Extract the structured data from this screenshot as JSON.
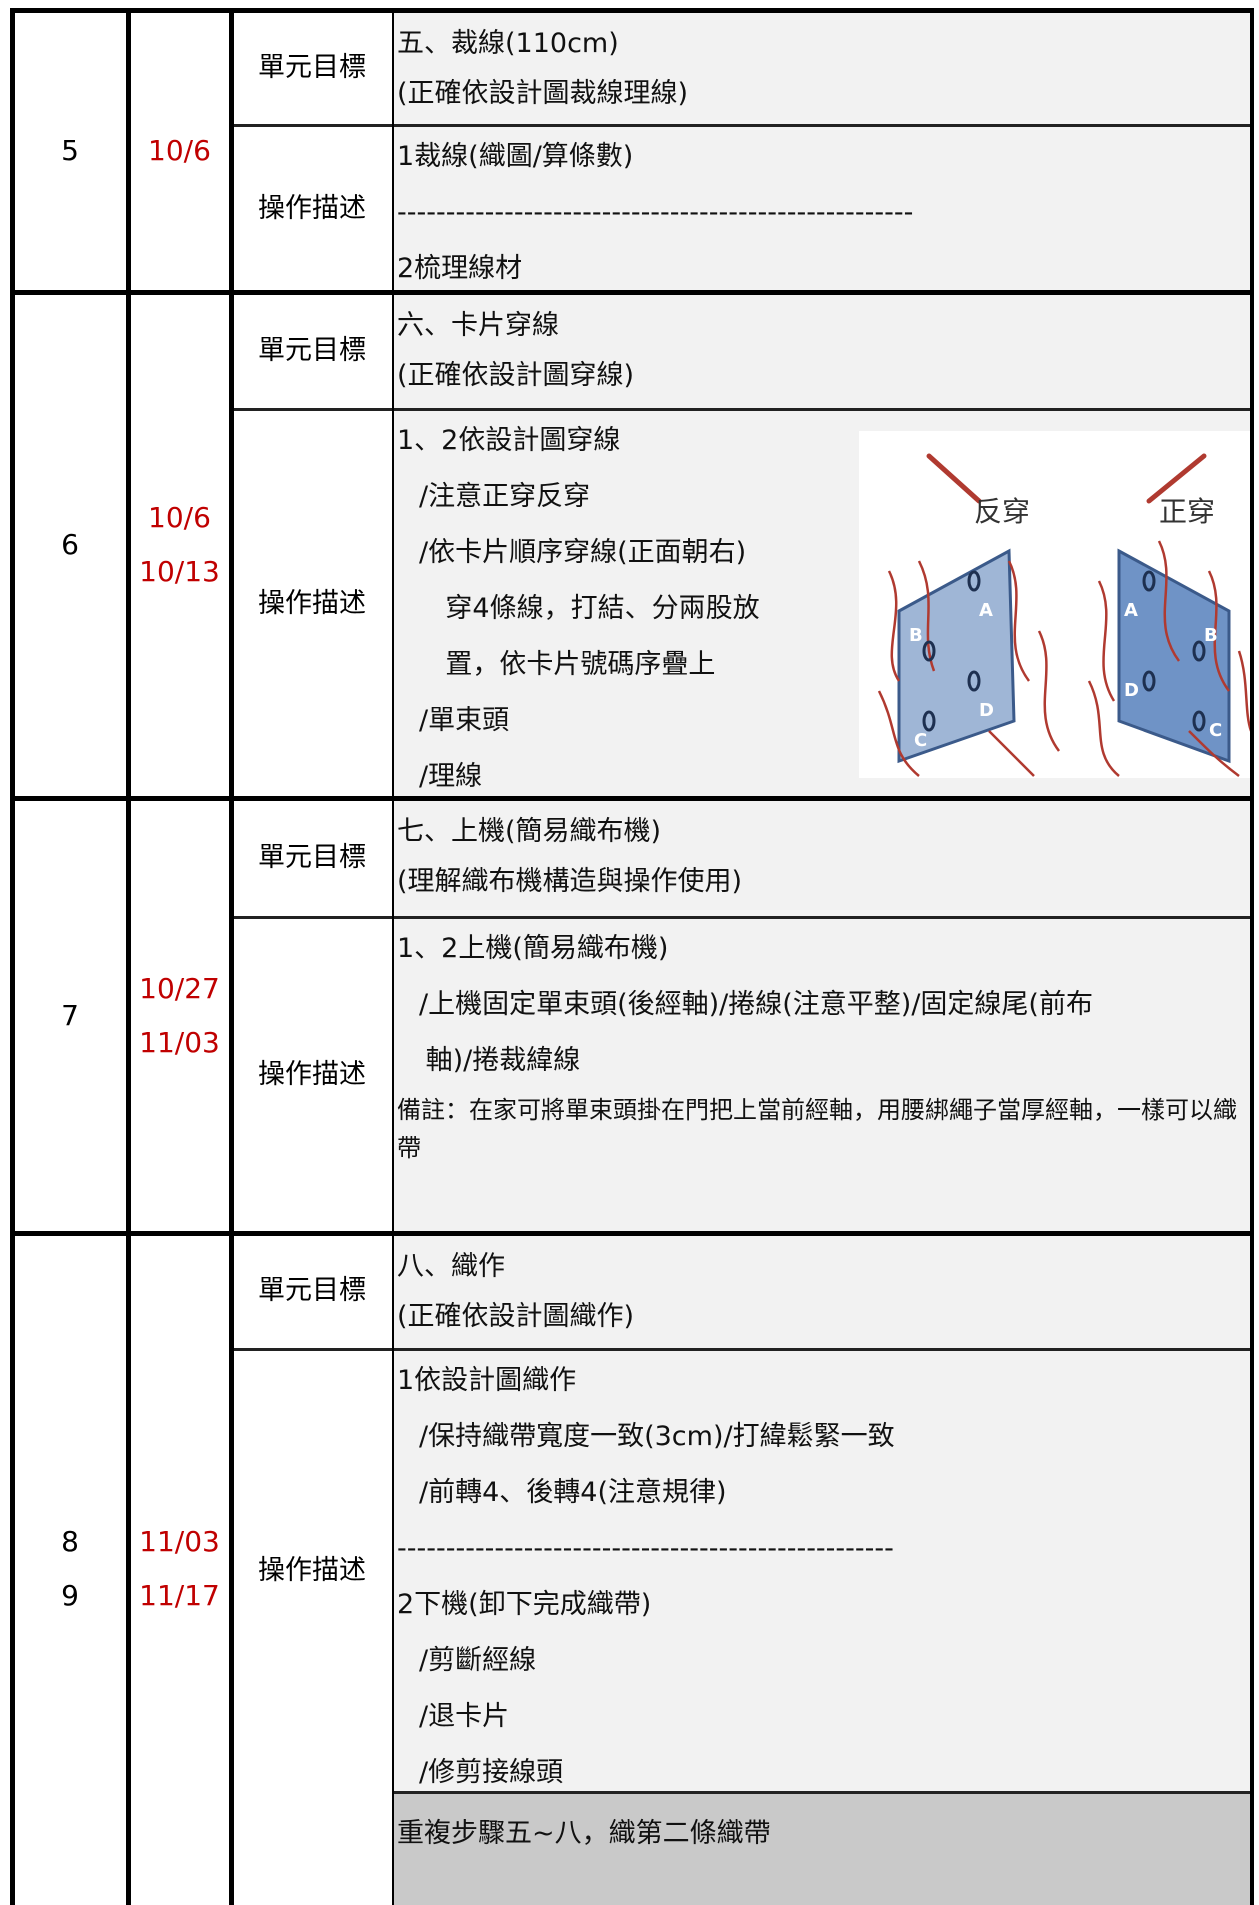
{
  "rows": [
    {
      "weeks": [
        "5"
      ],
      "dates": [
        "10/6"
      ],
      "goal_label": "單元目標",
      "goal": [
        "五、裁線(110cm)",
        "(正確依設計圖裁線理線)"
      ],
      "desc_label": "操作描述",
      "desc": [
        "1裁線(織圖/算條數)",
        "-----------------------------------------------------",
        "2梳理線材"
      ]
    },
    {
      "weeks": [
        "6"
      ],
      "dates": [
        "10/6",
        "10/13"
      ],
      "goal_label": "單元目標",
      "goal": [
        "六、卡片穿線",
        "(正確依設計圖穿線)"
      ],
      "desc_label": "操作描述",
      "desc": [
        "1、2依設計圖穿線",
        "/注意正穿反穿",
        "/依卡片順序穿線(正面朝右)",
        "穿4條線，打結、分兩股放",
        "置，依卡片號碼序疊上",
        "/單束頭",
        "/理線"
      ],
      "figure": {
        "left_label": "反穿",
        "right_label": "正穿",
        "left_holes": [
          "A",
          "B",
          "C",
          "D"
        ],
        "right_holes": [
          "A",
          "B",
          "C",
          "D"
        ]
      }
    },
    {
      "weeks": [
        "7"
      ],
      "dates": [
        "10/27",
        "11/03"
      ],
      "goal_label": "單元目標",
      "goal": [
        "七、上機(簡易織布機)",
        "(理解織布機構造與操作使用)"
      ],
      "desc_label": "操作描述",
      "desc": [
        "1、2上機(簡易織布機)",
        "/上機固定單束頭(後經軸)/捲線(注意平整)/固定線尾(前布",
        "軸)/捲裁緯線"
      ],
      "note": "備註：在家可將單束頭掛在門把上當前經軸，用腰綁繩子當厚經軸，一樣可以織帶"
    },
    {
      "weeks": [
        "8",
        "9"
      ],
      "dates": [
        "11/03",
        "11/17"
      ],
      "goal_label": "單元目標",
      "goal": [
        "八、織作",
        "(正確依設計圖織作)"
      ],
      "desc_label": "操作描述",
      "desc": [
        "1依設計圖織作",
        "/保持織帶寬度一致(3cm)/打緯鬆緊一致",
        "/前轉4、後轉4(注意規律)",
        "---------------------------------------------------",
        "2下機(卸下完成織帶)",
        "/剪斷經線",
        "/退卡片",
        "/修剪接線頭"
      ],
      "repeat": "重複步驟五~八，織第二條織帶"
    }
  ]
}
